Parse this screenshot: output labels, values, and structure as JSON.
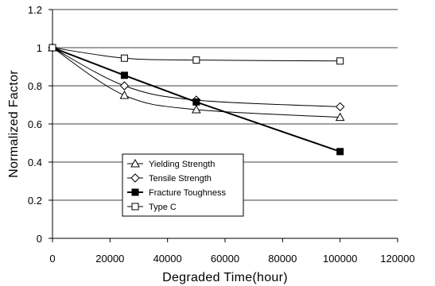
{
  "chart_data": {
    "type": "line",
    "title": "",
    "xlabel": "Degraded Time(hour)",
    "ylabel": "Normalized Factor",
    "xlim": [
      0,
      120000
    ],
    "ylim": [
      0,
      1.2
    ],
    "xticks": [
      0,
      20000,
      40000,
      60000,
      80000,
      100000,
      120000
    ],
    "yticks": [
      0,
      0.2,
      0.4,
      0.6,
      0.8,
      1,
      1.2
    ],
    "grid": "horizontal",
    "legend_position": "lower-left",
    "series": [
      {
        "name": "Yielding Strength",
        "marker": "triangle-open",
        "line": "smooth-thin",
        "x": [
          0,
          25000,
          50000,
          100000
        ],
        "y": [
          1.0,
          0.75,
          0.675,
          0.635
        ]
      },
      {
        "name": "Tensile Strength",
        "marker": "diamond-open",
        "line": "smooth-thin",
        "x": [
          0,
          25000,
          50000,
          100000
        ],
        "y": [
          1.0,
          0.8,
          0.725,
          0.69
        ]
      },
      {
        "name": "Fracture Toughness",
        "marker": "square-filled",
        "line": "straight-thick",
        "x": [
          0,
          25000,
          50000,
          100000
        ],
        "y": [
          1.0,
          0.855,
          0.715,
          0.455
        ]
      },
      {
        "name": "Type C",
        "marker": "square-open",
        "line": "smooth-thin",
        "x": [
          0,
          25000,
          50000,
          100000
        ],
        "y": [
          1.0,
          0.945,
          0.935,
          0.93
        ]
      }
    ]
  }
}
